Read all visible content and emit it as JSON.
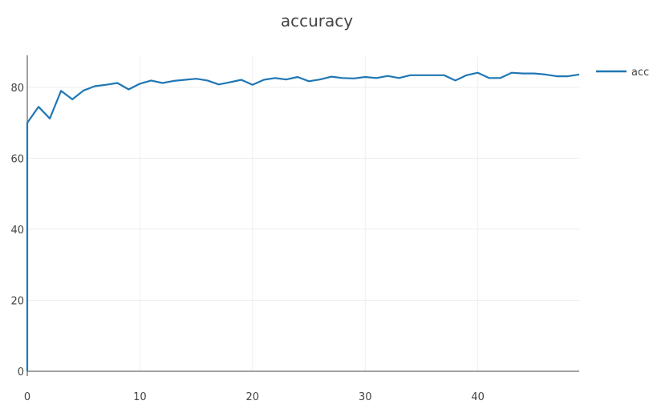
{
  "chart_data": {
    "type": "line",
    "title": "accuracy",
    "xlabel": "",
    "ylabel": "",
    "xlim": [
      0,
      49
    ],
    "ylim": [
      0,
      89
    ],
    "x_ticks": [
      0,
      10,
      20,
      30,
      40
    ],
    "y_ticks": [
      0,
      20,
      40,
      60,
      80
    ],
    "grid": true,
    "legend_position": "top-right",
    "series": [
      {
        "name": "acc",
        "color": "#1f77b4",
        "x": [
          0,
          1,
          2,
          3,
          4,
          5,
          6,
          7,
          8,
          9,
          10,
          11,
          12,
          13,
          14,
          15,
          16,
          17,
          18,
          19,
          20,
          21,
          22,
          23,
          24,
          25,
          26,
          27,
          28,
          29,
          30,
          31,
          32,
          33,
          34,
          35,
          36,
          37,
          38,
          39,
          40,
          41,
          42,
          43,
          44,
          45,
          46,
          47,
          48,
          49
        ],
        "y": [
          70.0,
          74.5,
          71.2,
          79.0,
          76.6,
          79.1,
          80.3,
          80.7,
          81.2,
          79.4,
          81.0,
          81.9,
          81.2,
          81.8,
          82.1,
          82.4,
          81.9,
          80.8,
          81.4,
          82.1,
          80.7,
          82.1,
          82.6,
          82.2,
          82.9,
          81.7,
          82.2,
          83.0,
          82.6,
          82.5,
          82.9,
          82.6,
          83.2,
          82.6,
          83.4,
          83.4,
          83.4,
          83.4,
          81.9,
          83.4,
          84.1,
          82.6,
          82.6,
          84.1,
          83.9,
          83.9,
          83.6,
          83.1,
          83.1,
          83.6
        ]
      }
    ]
  }
}
